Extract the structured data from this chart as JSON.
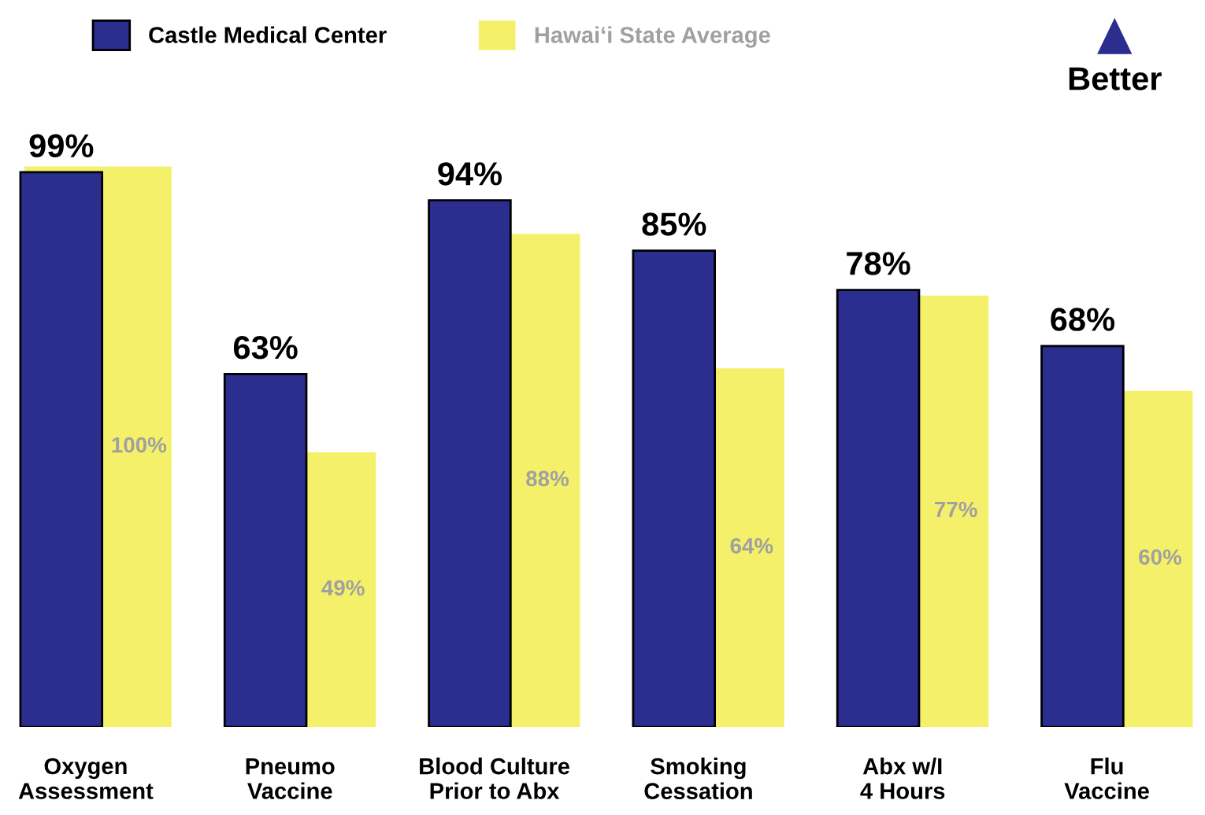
{
  "chart_data": {
    "type": "bar",
    "categories": [
      "Oxygen\nAssessment",
      "Pneumo\nVaccine",
      "Blood Culture\nPrior to Abx",
      "Smoking\nCessation",
      "Abx w/I\n4 Hours",
      "Flu\nVaccine"
    ],
    "series": [
      {
        "name": "Hawai‘i State Average",
        "color": "#f5f06a",
        "values": [
          100,
          49,
          88,
          64,
          77,
          60
        ],
        "value_labels": [
          "100%",
          "49%",
          "88%",
          "64%",
          "77%",
          "60%"
        ]
      },
      {
        "name": "Castle Medical Center",
        "color": "#2b2d8f",
        "values": [
          99,
          63,
          94,
          85,
          78,
          68
        ],
        "value_labels": [
          "99%",
          "63%",
          "94%",
          "85%",
          "78%",
          "68%"
        ]
      }
    ],
    "legend": "top left",
    "annotations": [
      "Better"
    ]
  }
}
